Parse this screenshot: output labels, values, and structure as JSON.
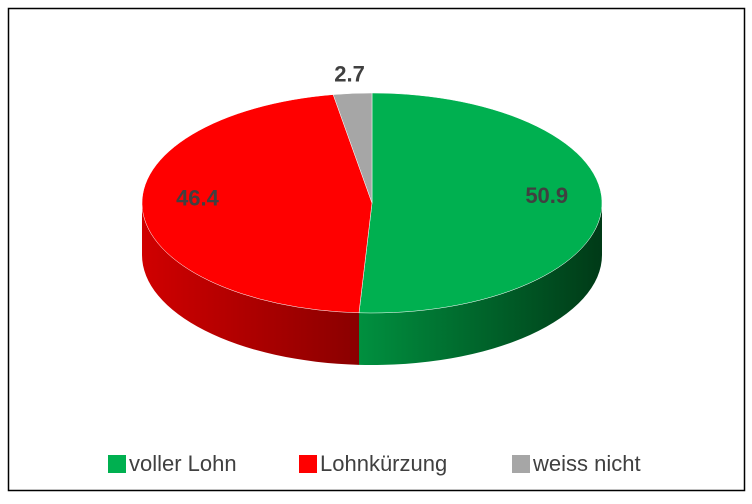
{
  "chart_data": {
    "type": "pie3d",
    "categories": [
      "voller Lohn",
      "Lohnkürzung",
      "weiss nicht"
    ],
    "values": [
      50.9,
      46.4,
      2.7
    ],
    "colors": [
      "#00b050",
      "#ff0000",
      "#a6a6a6"
    ],
    "legend": "bottom"
  }
}
